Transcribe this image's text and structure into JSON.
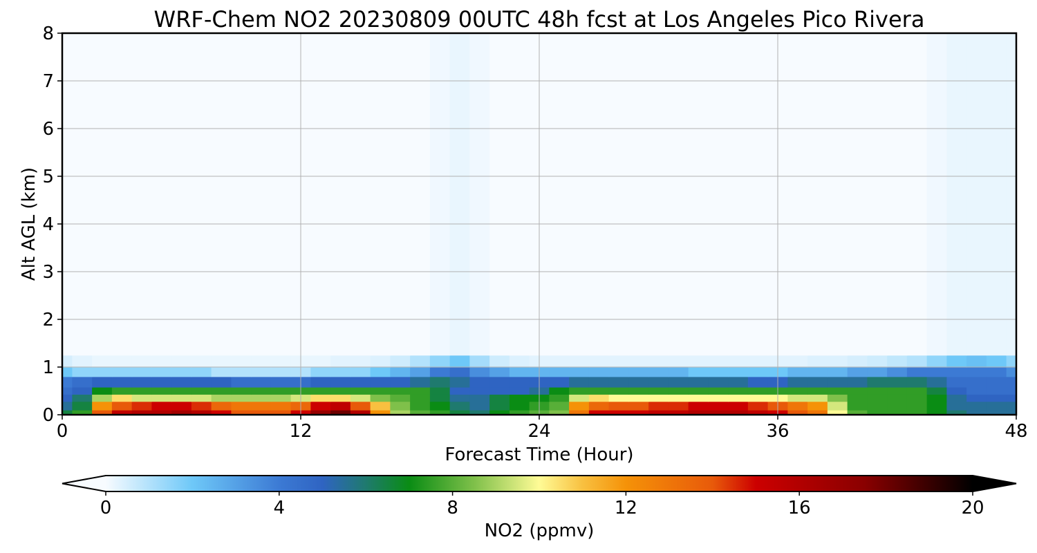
{
  "chart_data": {
    "type": "heatmap",
    "title": "WRF-Chem NO2  20230809 00UTC 48h fcst at Los Angeles Pico Rivera",
    "xlabel": "Forecast Time (Hour)",
    "ylabel": "Alt AGL (km)",
    "xlim": [
      0,
      48
    ],
    "ylim": [
      0,
      8
    ],
    "x_ticks": [
      "0",
      "12",
      "24",
      "36",
      "48"
    ],
    "y_ticks": [
      "0",
      "1",
      "2",
      "3",
      "4",
      "5",
      "6",
      "7",
      "8"
    ],
    "grid": true,
    "x_hours": [
      0,
      1,
      2,
      3,
      4,
      5,
      6,
      7,
      8,
      9,
      10,
      11,
      12,
      13,
      14,
      15,
      16,
      17,
      18,
      19,
      20,
      21,
      22,
      23,
      24,
      25,
      26,
      27,
      28,
      29,
      30,
      31,
      32,
      33,
      34,
      35,
      36,
      37,
      38,
      39,
      40,
      41,
      42,
      43,
      44,
      45,
      46,
      47,
      48
    ],
    "layer_alts_km": [
      0.05,
      0.2,
      0.35,
      0.5,
      0.7,
      0.9,
      1.1,
      1.4
    ],
    "layer_edges_km": [
      0,
      0.1,
      0.28,
      0.43,
      0.58,
      0.8,
      1.0,
      1.25,
      8
    ],
    "no2_ppmv": [
      [
        6.5,
        7.5,
        14,
        15.5,
        16,
        16,
        16.5,
        16,
        15,
        14,
        14,
        14,
        15,
        17,
        18,
        16,
        12,
        9,
        8,
        7.5,
        6.5,
        6,
        7,
        7.5,
        8,
        8.5,
        13,
        15,
        15,
        15,
        15.5,
        15.5,
        16,
        16,
        16,
        15.5,
        15,
        14,
        13,
        10,
        8,
        7.5,
        7.5,
        7.5,
        7,
        6,
        5.5,
        5.5,
        5.5
      ],
      [
        5.5,
        6.5,
        12,
        14,
        14.5,
        15,
        15,
        14.5,
        13.5,
        13,
        13,
        13,
        13.5,
        15,
        15.5,
        14,
        11,
        8.5,
        7.5,
        7,
        6,
        5.5,
        6.5,
        7,
        7.5,
        8,
        12,
        13.5,
        14,
        14,
        14.5,
        14.5,
        15,
        15,
        15,
        14.5,
        14,
        13,
        12,
        9.5,
        7.5,
        7.5,
        7.5,
        7.5,
        7,
        5.5,
        5.5,
        5.5,
        5.5
      ],
      [
        5,
        6,
        9,
        10.5,
        9.5,
        9.5,
        9.5,
        9.5,
        9,
        9,
        9,
        9,
        9.5,
        10.5,
        10.5,
        9.5,
        8.5,
        8,
        7.5,
        6.5,
        5.5,
        5.5,
        6.5,
        7,
        7,
        7.5,
        9.5,
        10.5,
        10,
        10,
        10,
        10,
        10,
        10,
        10,
        10,
        10,
        9.5,
        9.5,
        8.5,
        7.5,
        7.5,
        7.5,
        7.5,
        7,
        5.5,
        5,
        5,
        5
      ],
      [
        4.5,
        5,
        7,
        7.5,
        7.5,
        7.5,
        7.5,
        7.5,
        7.5,
        7.5,
        7.5,
        7.5,
        7.5,
        7.5,
        7.5,
        7.5,
        7.5,
        7.5,
        7.5,
        6.5,
        5,
        5,
        5,
        5,
        5.5,
        7,
        7.5,
        7.5,
        7.5,
        7.5,
        7.5,
        7.5,
        7.5,
        7.5,
        7.5,
        7.5,
        7.5,
        7.5,
        7.5,
        7.5,
        7.5,
        7.5,
        7.5,
        7.5,
        6.5,
        5,
        4.5,
        4.5,
        4.5
      ],
      [
        4,
        4.5,
        5,
        5,
        5,
        5,
        5,
        5,
        5,
        4.5,
        4.5,
        4.5,
        4.5,
        5,
        5,
        5,
        5,
        5,
        5.5,
        6,
        5.5,
        5,
        5,
        5,
        5,
        5,
        5.5,
        5.5,
        5.5,
        5.5,
        5.5,
        5.5,
        5.5,
        5.5,
        5.5,
        5,
        5,
        5.5,
        5.5,
        5.5,
        5.5,
        6,
        6,
        6,
        5.5,
        4.5,
        4.5,
        4.5,
        4.5
      ],
      [
        2,
        1.5,
        1.5,
        1.5,
        1.5,
        1.5,
        1.5,
        1.5,
        1,
        1,
        1,
        1,
        1,
        1.5,
        1.5,
        1.5,
        2,
        2.5,
        3,
        4,
        4.5,
        3.5,
        3,
        2.5,
        2.5,
        2.5,
        2.5,
        2.5,
        2.5,
        2.5,
        2.5,
        2.5,
        2,
        2,
        2,
        2,
        2,
        2.5,
        2.5,
        2.5,
        3,
        3,
        3.5,
        4,
        4,
        4,
        4,
        4,
        3.5
      ],
      [
        0.5,
        0.3,
        0.2,
        0.2,
        0.2,
        0.2,
        0.2,
        0.2,
        0.2,
        0.2,
        0.2,
        0.2,
        0.2,
        0.2,
        0.3,
        0.3,
        0.4,
        0.6,
        1,
        1.5,
        2,
        1.2,
        0.6,
        0.4,
        0.3,
        0.3,
        0.3,
        0.3,
        0.3,
        0.3,
        0.3,
        0.3,
        0.3,
        0.3,
        0.3,
        0.3,
        0.3,
        0.3,
        0.4,
        0.4,
        0.5,
        0.6,
        0.8,
        1,
        1.5,
        2,
        2.2,
        2,
        1.5
      ],
      [
        0,
        0,
        0,
        0,
        0,
        0,
        0,
        0,
        0,
        0,
        0,
        0,
        0,
        0,
        0,
        0,
        0,
        0,
        0,
        0.1,
        0.2,
        0.1,
        0,
        0,
        0,
        0,
        0,
        0,
        0,
        0,
        0,
        0,
        0,
        0,
        0,
        0,
        0,
        0,
        0,
        0,
        0,
        0,
        0,
        0,
        0.1,
        0.2,
        0.2,
        0.2,
        0.2
      ]
    ],
    "colorbar": {
      "label": "NO2  (ppmv)",
      "min": 0,
      "max": 20,
      "ticks": [
        "0",
        "4",
        "8",
        "12",
        "16",
        "20"
      ],
      "extend": "both",
      "color_stops": [
        {
          "v": 0,
          "c": "#f7fbff"
        },
        {
          "v": 2,
          "c": "#6ec8f8"
        },
        {
          "v": 4,
          "c": "#3c7ad4"
        },
        {
          "v": 5,
          "c": "#2f64c2"
        },
        {
          "v": 6,
          "c": "#1f7a6e"
        },
        {
          "v": 7,
          "c": "#0a8c14"
        },
        {
          "v": 8.5,
          "c": "#7fc04a"
        },
        {
          "v": 10,
          "c": "#fffb96"
        },
        {
          "v": 11,
          "c": "#f8c040"
        },
        {
          "v": 12,
          "c": "#f59208"
        },
        {
          "v": 14,
          "c": "#e85a0a"
        },
        {
          "v": 15,
          "c": "#cc0000"
        },
        {
          "v": 17.5,
          "c": "#8a0000"
        },
        {
          "v": 20,
          "c": "#000000"
        }
      ]
    }
  }
}
